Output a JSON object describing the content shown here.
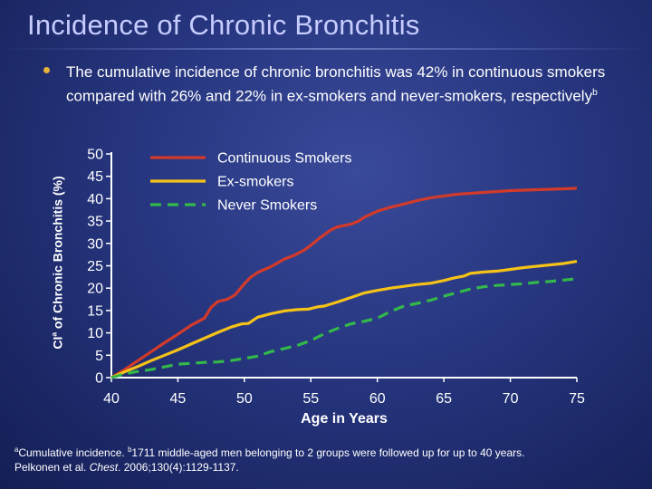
{
  "slide": {
    "title": "Incidence of Chronic Bronchitis",
    "bullet": "The cumulative incidence of chronic bronchitis was 42% in continuous smokers compared with 26% and 22% in ex-smokers and never-smokers, respectively",
    "bullet_sup": "b"
  },
  "footnote": {
    "a_mark": "a",
    "a_text": "Cumulative incidence. ",
    "b_mark": "b",
    "b_text": "1711 middle-aged men belonging to 2 groups were followed up for up to 40 years.",
    "ref_prefix": "Pelkonen et al. ",
    "ref_journal": "Chest",
    "ref_suffix": ". 2006;130(4):1129-1137."
  },
  "chart_data": {
    "type": "line",
    "ylabel_pre": "CI",
    "ylabel_sup": "a",
    "ylabel_post": " of Chronic Bronchitis (%)",
    "xlabel": "Age in Years",
    "xlim": [
      40,
      75
    ],
    "ylim": [
      0,
      50
    ],
    "x_ticks": [
      "40",
      "45",
      "50",
      "55",
      "60",
      "65",
      "70",
      "75"
    ],
    "y_ticks": [
      "50",
      "45",
      "40",
      "35",
      "30",
      "25",
      "20",
      "15",
      "10",
      "5",
      "0"
    ],
    "legend_position": "top-center",
    "grid": false,
    "series": [
      {
        "name": "Continuous Smokers",
        "color": "#d23a2a",
        "dashed": false,
        "x": [
          40,
          41,
          42,
          43,
          44,
          45,
          46,
          47,
          47.5,
          48,
          48.7,
          49.3,
          50,
          50.5,
          51,
          52,
          53,
          53.8,
          54.5,
          55,
          55.7,
          56.5,
          57,
          58,
          58.6,
          59,
          60,
          61,
          62,
          63,
          64,
          65,
          66,
          67,
          68,
          69,
          70,
          71,
          72,
          73,
          74,
          75
        ],
        "y": [
          0,
          1.8,
          3.8,
          5.8,
          7.8,
          9.7,
          11.7,
          13.3,
          15.7,
          17,
          17.5,
          18.5,
          21,
          22.5,
          23.5,
          24.8,
          26.5,
          27.4,
          28.5,
          29.6,
          31.3,
          33,
          33.7,
          34.3,
          35,
          35.8,
          37.2,
          38.1,
          38.8,
          39.6,
          40.2,
          40.6,
          41,
          41.2,
          41.4,
          41.6,
          41.8,
          41.9,
          42,
          42.1,
          42.2,
          42.3
        ]
      },
      {
        "name": "Ex-smokers",
        "color": "#f5c218",
        "dashed": false,
        "x": [
          40,
          41,
          42,
          43,
          44,
          45,
          46,
          47,
          48,
          49,
          49.8,
          50.3,
          51,
          52,
          53,
          54,
          54.8,
          55.5,
          56,
          57,
          58,
          59,
          60,
          61,
          62,
          63,
          64,
          65,
          65.8,
          66.5,
          67,
          68,
          69,
          70,
          71,
          72,
          73,
          74,
          75
        ],
        "y": [
          0,
          1.3,
          2.5,
          3.8,
          5,
          6.2,
          7.5,
          8.8,
          10.1,
          11.3,
          12,
          12.1,
          13.5,
          14.3,
          14.9,
          15.2,
          15.3,
          15.8,
          16,
          16.9,
          17.9,
          18.9,
          19.5,
          20,
          20.4,
          20.8,
          21.1,
          21.7,
          22.3,
          22.7,
          23.3,
          23.6,
          23.8,
          24.2,
          24.6,
          24.9,
          25.2,
          25.5,
          26
        ]
      },
      {
        "name": "Never Smokers",
        "color": "#33b84a",
        "dashed": true,
        "x": [
          40,
          41,
          42,
          43,
          44,
          45,
          46,
          47,
          48,
          49,
          50,
          51,
          52,
          53,
          54,
          55,
          56,
          57,
          58,
          59,
          60,
          61,
          62,
          63,
          64,
          65,
          66,
          67,
          68,
          69,
          70,
          71,
          72,
          73,
          74,
          75
        ],
        "y": [
          0,
          0.8,
          1.4,
          1.8,
          2.4,
          3,
          3.2,
          3.4,
          3.5,
          3.8,
          4.3,
          4.8,
          5.8,
          6.5,
          7.2,
          8.3,
          9.8,
          11,
          12,
          12.6,
          13.3,
          14.8,
          16,
          16.6,
          17.3,
          18.2,
          19,
          19.8,
          20.3,
          20.6,
          20.8,
          21,
          21.3,
          21.5,
          21.8,
          22.1
        ]
      }
    ]
  }
}
